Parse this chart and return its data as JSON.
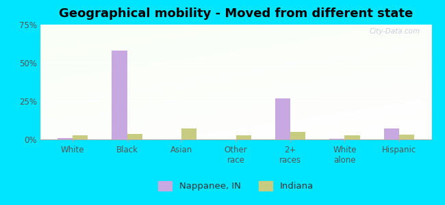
{
  "title": "Geographical mobility - Moved from different state",
  "categories": [
    "White",
    "Black",
    "Asian",
    "Other\nrace",
    "2+\nraces",
    "White\nalone",
    "Hispanic"
  ],
  "nappanee_values": [
    1.0,
    58.0,
    0.0,
    0.0,
    27.0,
    0.3,
    7.0
  ],
  "indiana_values": [
    2.5,
    3.5,
    7.0,
    2.5,
    5.0,
    2.5,
    3.0
  ],
  "nappanee_color": "#c8a8e0",
  "indiana_color": "#c8cc80",
  "outer_bg": "#00e5ff",
  "bar_width": 0.28,
  "ylim": [
    0,
    75
  ],
  "yticks": [
    0,
    25,
    50,
    75
  ],
  "ytick_labels": [
    "0%",
    "25%",
    "50%",
    "75%"
  ],
  "legend_nappanee": "Nappanee, IN",
  "legend_indiana": "Indiana",
  "title_fontsize": 13,
  "tick_fontsize": 8.5,
  "watermark": "City-Data.com"
}
